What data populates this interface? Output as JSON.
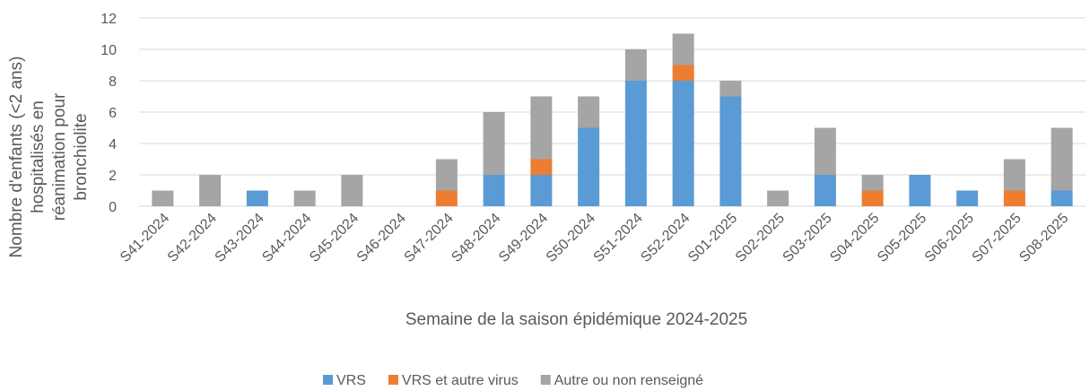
{
  "chart_data": {
    "type": "stacked_bar",
    "ylabel": "Nombre d'enfants (<2 ans) hospitalisés en réanimation pour bronchiolite",
    "xlabel": "Semaine de la saison épidémique 2024-2025",
    "categories": [
      "S41-2024",
      "S42-2024",
      "S43-2024",
      "S44-2024",
      "S45-2024",
      "S46-2024",
      "S47-2024",
      "S48-2024",
      "S49-2024",
      "S50-2024",
      "S51-2024",
      "S52-2024",
      "S01-2025",
      "S02-2025",
      "S03-2025",
      "S04-2025",
      "S05-2025",
      "S06-2025",
      "S07-2025",
      "S08-2025"
    ],
    "series": [
      {
        "name": "VRS",
        "color": "#5b9bd5",
        "values": [
          0,
          0,
          1,
          0,
          0,
          0,
          0,
          2,
          2,
          5,
          8,
          8,
          7,
          0,
          2,
          0,
          2,
          1,
          0,
          1
        ]
      },
      {
        "name": "VRS et autre virus",
        "color": "#ed7d31",
        "values": [
          0,
          0,
          0,
          0,
          0,
          0,
          1,
          0,
          1,
          0,
          0,
          1,
          0,
          0,
          0,
          1,
          0,
          0,
          1,
          0
        ]
      },
      {
        "name": "Autre ou non renseigné",
        "color": "#a5a5a5",
        "values": [
          1,
          2,
          0,
          1,
          2,
          0,
          2,
          4,
          4,
          2,
          2,
          2,
          1,
          1,
          3,
          1,
          0,
          0,
          2,
          4
        ]
      }
    ],
    "ylim": [
      0,
      12
    ],
    "yticks": [
      0,
      2,
      4,
      6,
      8,
      10,
      12
    ],
    "grid": true
  }
}
